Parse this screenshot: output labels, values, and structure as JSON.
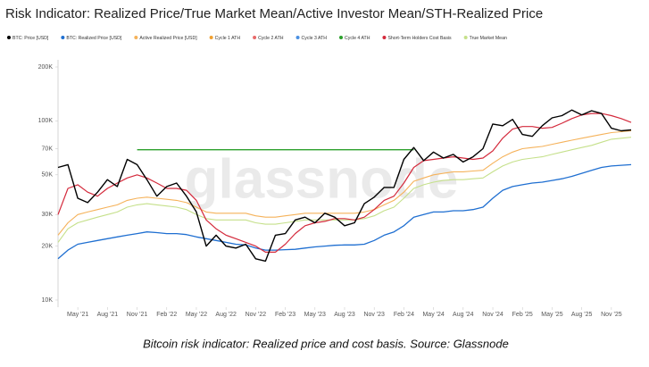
{
  "chart_data": {
    "type": "line",
    "title": "Risk Indicator: Realized Price/True Market Mean/Active Investor Mean/STH-Realized Price",
    "watermark": "glassnode",
    "caption": "Bitcoin risk indicator: Realized price and cost basis. Source: Glassnode",
    "log_scale": true,
    "grid": false,
    "ylim": [
      10000,
      200000
    ],
    "yticks": [
      {
        "value": 10000,
        "label": "10K"
      },
      {
        "value": 20000,
        "label": "20K"
      },
      {
        "value": 30000,
        "label": "30K"
      },
      {
        "value": 50000,
        "label": "50K"
      },
      {
        "value": 70000,
        "label": "70K"
      },
      {
        "value": 100000,
        "label": "100K"
      },
      {
        "value": 200000,
        "label": "200K"
      }
    ],
    "xlim": [
      "2021-03",
      "2026-01"
    ],
    "xticks": [
      {
        "value": "2021-05",
        "label": "May '21"
      },
      {
        "value": "2021-08",
        "label": "Aug '21"
      },
      {
        "value": "2021-11",
        "label": "Nov '21"
      },
      {
        "value": "2022-02",
        "label": "Feb '22"
      },
      {
        "value": "2022-05",
        "label": "May '22"
      },
      {
        "value": "2022-08",
        "label": "Aug '22"
      },
      {
        "value": "2022-11",
        "label": "Nov '22"
      },
      {
        "value": "2023-02",
        "label": "Feb '23"
      },
      {
        "value": "2023-05",
        "label": "May '23"
      },
      {
        "value": "2023-08",
        "label": "Aug '23"
      },
      {
        "value": "2023-11",
        "label": "Nov '23"
      },
      {
        "value": "2024-02",
        "label": "Feb '24"
      },
      {
        "value": "2024-05",
        "label": "May '24"
      },
      {
        "value": "2024-08",
        "label": "Aug '24"
      },
      {
        "value": "2024-11",
        "label": "Nov '24"
      },
      {
        "value": "2025-02",
        "label": "Feb '25"
      },
      {
        "value": "2025-05",
        "label": "May '25"
      },
      {
        "value": "2025-08",
        "label": "Aug '25"
      },
      {
        "value": "2025-11",
        "label": "Nov '25"
      }
    ],
    "x": [
      "2021-03",
      "2021-04",
      "2021-05",
      "2021-06",
      "2021-07",
      "2021-08",
      "2021-09",
      "2021-10",
      "2021-11",
      "2021-12",
      "2022-01",
      "2022-02",
      "2022-03",
      "2022-04",
      "2022-05",
      "2022-06",
      "2022-07",
      "2022-08",
      "2022-09",
      "2022-10",
      "2022-11",
      "2022-12",
      "2023-01",
      "2023-02",
      "2023-03",
      "2023-04",
      "2023-05",
      "2023-06",
      "2023-07",
      "2023-08",
      "2023-09",
      "2023-10",
      "2023-11",
      "2023-12",
      "2024-01",
      "2024-02",
      "2024-03",
      "2024-04",
      "2024-05",
      "2024-06",
      "2024-07",
      "2024-08",
      "2024-09",
      "2024-10",
      "2024-11",
      "2024-12",
      "2025-01",
      "2025-02",
      "2025-03",
      "2025-04",
      "2025-05",
      "2025-06",
      "2025-07",
      "2025-08",
      "2025-09",
      "2025-10",
      "2025-11",
      "2025-12",
      "2026-01"
    ],
    "series": [
      {
        "name": "BTC: Price [USD]",
        "color": "#000000",
        "width": 1.4,
        "values": [
          55000,
          57000,
          37000,
          35000,
          40000,
          47000,
          43000,
          61000,
          57000,
          47000,
          38000,
          43000,
          45000,
          38000,
          31000,
          20000,
          23000,
          20000,
          19500,
          20500,
          17000,
          16500,
          23000,
          23500,
          28000,
          29000,
          27000,
          30500,
          29000,
          26000,
          27000,
          34500,
          37500,
          42500,
          42500,
          61000,
          71000,
          60000,
          67000,
          62000,
          65000,
          59000,
          63000,
          70000,
          96000,
          94000,
          102000,
          84000,
          82000,
          94000,
          104000,
          107000,
          115000,
          108000,
          114000,
          110000,
          91000,
          88000,
          89000
        ]
      },
      {
        "name": "BTC: Realized Price [USD]",
        "color": "#1f6fd1",
        "width": 1.3,
        "values": [
          17000,
          19000,
          20500,
          21000,
          21500,
          22000,
          22500,
          23000,
          23500,
          24000,
          23800,
          23500,
          23500,
          23200,
          22500,
          22000,
          21500,
          21000,
          20500,
          20300,
          19500,
          19000,
          19000,
          19100,
          19200,
          19500,
          19800,
          20000,
          20200,
          20300,
          20300,
          20500,
          21500,
          23000,
          24000,
          26000,
          29000,
          30000,
          31000,
          31000,
          31500,
          31500,
          32000,
          33000,
          37000,
          41000,
          43000,
          44000,
          45000,
          45500,
          46500,
          47500,
          49000,
          51000,
          53000,
          55000,
          56000,
          56500,
          57000
        ]
      },
      {
        "name": "Active Realized Price [USD]",
        "color": "#f5b25a",
        "width": 1.1,
        "values": [
          23000,
          27000,
          30000,
          31000,
          32000,
          33000,
          34000,
          36000,
          37000,
          37500,
          37000,
          36500,
          36000,
          35000,
          33000,
          31000,
          30500,
          30500,
          30500,
          30500,
          29500,
          29000,
          29000,
          29500,
          30000,
          30500,
          30500,
          30500,
          30500,
          30500,
          30500,
          31000,
          32000,
          34000,
          36000,
          40000,
          46000,
          48000,
          50000,
          51000,
          52000,
          52000,
          52500,
          53000,
          58000,
          63000,
          67000,
          70000,
          71000,
          72000,
          74000,
          76000,
          78000,
          80000,
          82000,
          84000,
          86000,
          87000,
          88000
        ]
      },
      {
        "name": "Cycle 1 ATH",
        "color": "#f0a030"
      },
      {
        "name": "Cycle 2 ATH",
        "color": "#e86a6a"
      },
      {
        "name": "Cycle 3 ATH",
        "color": "#4a90e2"
      },
      {
        "name": "Cycle 4 ATH",
        "color": "#2ca02c",
        "width": 1.3,
        "x": [
          "2021-11",
          "2024-03"
        ],
        "values": [
          69000,
          69000
        ]
      },
      {
        "name": "Short-Term Holders Cost Basis",
        "color": "#d42a3c",
        "width": 1.2,
        "values": [
          30000,
          42000,
          44000,
          40000,
          38000,
          42000,
          45000,
          48000,
          50000,
          48000,
          45000,
          42000,
          42000,
          41000,
          36000,
          28000,
          25000,
          23000,
          22000,
          21000,
          20000,
          18500,
          18500,
          20500,
          23500,
          26000,
          27000,
          27500,
          28500,
          28500,
          28000,
          29000,
          32000,
          36000,
          38000,
          45000,
          55000,
          60000,
          61000,
          62000,
          63000,
          62000,
          61000,
          62000,
          68000,
          80000,
          90000,
          93000,
          93000,
          91000,
          92000,
          97000,
          103000,
          108000,
          110000,
          110000,
          107000,
          103000,
          98000
        ]
      },
      {
        "name": "True Market Mean",
        "color": "#c5e08a",
        "width": 1.1,
        "values": [
          21000,
          25000,
          27000,
          28000,
          29000,
          30000,
          31000,
          33000,
          34000,
          34500,
          34000,
          33500,
          33000,
          32000,
          30000,
          28500,
          28000,
          28000,
          28000,
          28000,
          27000,
          26500,
          26500,
          27000,
          27500,
          28000,
          28000,
          28000,
          28000,
          28000,
          28000,
          28500,
          29500,
          31500,
          33000,
          37000,
          42000,
          44000,
          45500,
          46500,
          47000,
          47000,
          47500,
          48000,
          52000,
          56000,
          59000,
          61000,
          62000,
          63000,
          65000,
          67000,
          69000,
          71000,
          73000,
          76000,
          79000,
          80000,
          81000
        ]
      }
    ]
  }
}
